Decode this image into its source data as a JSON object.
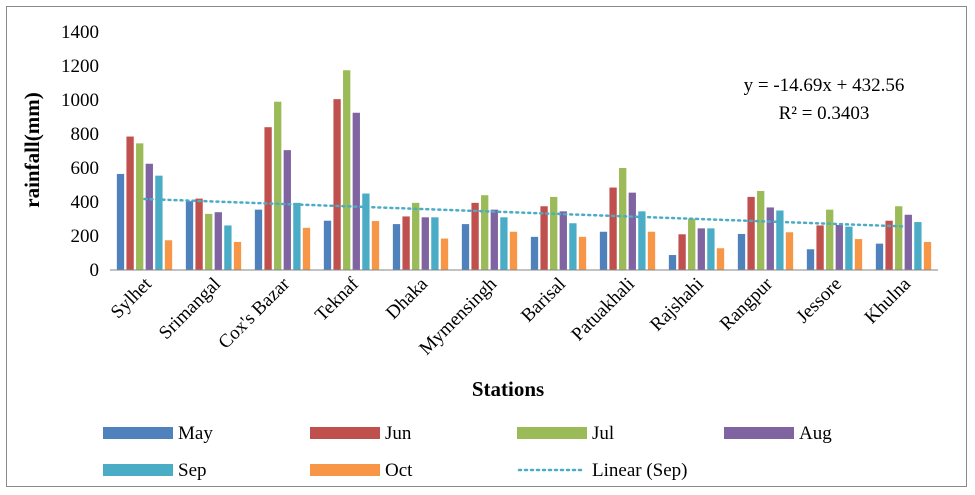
{
  "chart_data": {
    "type": "bar",
    "xlabel": "Stations",
    "ylabel": "rainfall(mm)",
    "ylim": [
      0,
      1400
    ],
    "yticks": [
      0,
      200,
      400,
      600,
      800,
      1000,
      1200,
      1400
    ],
    "grid": false,
    "legend_position": "bottom",
    "categories": [
      "Sylhet",
      "Srimangal",
      "Cox's Bazar",
      "Teknaf",
      "Dhaka",
      "Mymensingh",
      "Barisal",
      "Patuakhali",
      "Rajshahi",
      "Rangpur",
      "Jessore",
      "Khulna"
    ],
    "series": [
      {
        "name": "May",
        "color": "#4f81bd",
        "values": [
          565,
          405,
          355,
          290,
          270,
          270,
          195,
          225,
          88,
          212,
          122,
          155
        ]
      },
      {
        "name": "Jun",
        "color": "#c0504d",
        "values": [
          785,
          420,
          840,
          1005,
          315,
          395,
          375,
          485,
          210,
          430,
          262,
          290
        ]
      },
      {
        "name": "Jul",
        "color": "#9bbb59",
        "values": [
          745,
          330,
          990,
          1175,
          395,
          440,
          430,
          600,
          302,
          465,
          355,
          375
        ]
      },
      {
        "name": "Aug",
        "color": "#8064a2",
        "values": [
          625,
          340,
          705,
          925,
          310,
          355,
          345,
          455,
          245,
          368,
          265,
          325
        ]
      },
      {
        "name": "Sep",
        "color": "#4bacc6",
        "values": [
          555,
          262,
          395,
          450,
          310,
          310,
          275,
          345,
          245,
          350,
          255,
          282
        ]
      },
      {
        "name": "Oct",
        "color": "#f79646",
        "values": [
          175,
          165,
          248,
          288,
          185,
          225,
          195,
          225,
          128,
          222,
          182,
          165
        ]
      }
    ],
    "trendline": {
      "name": "Linear (Sep)",
      "series": "Sep",
      "slope": -14.69,
      "intercept": 432.56,
      "color": "#4bacc6",
      "equation": "y = -14.69x + 432.56",
      "r_squared": "R² = 0.3403"
    }
  }
}
